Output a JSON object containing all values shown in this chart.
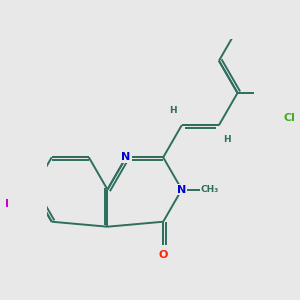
{
  "bg_color": "#e8e8e8",
  "bond_color": "#2d6e5e",
  "bond_width": 1.4,
  "N_color": "#0000cc",
  "O_color": "#ff2200",
  "I_color": "#cc00cc",
  "Cl_color": "#44aa22",
  "font_size": 8.0,
  "small_font": 6.5,
  "xlim": [
    -4.5,
    4.5
  ],
  "ylim": [
    -4.5,
    4.5
  ]
}
